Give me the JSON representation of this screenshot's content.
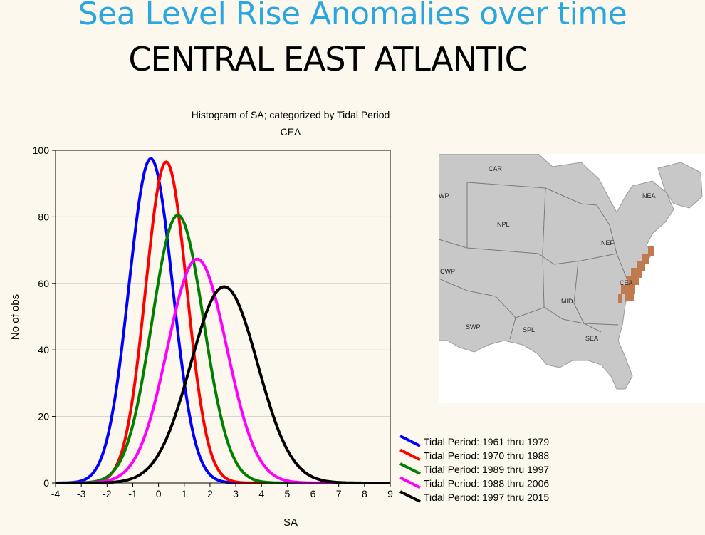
{
  "slide": {
    "title": "Sea Level Rise Anomalies over time",
    "subtitle": "CENTRAL EAST ATLANTIC"
  },
  "chart_data": {
    "type": "line",
    "title": "Histogram of SA; categorized by Tidal Period",
    "subtitle": "CEA",
    "xlabel": "SA",
    "ylabel": "No of obs",
    "xlim": [
      -4,
      9
    ],
    "ylim": [
      0,
      100
    ],
    "xticks": [
      -4,
      -3,
      -2,
      -1,
      0,
      1,
      2,
      3,
      4,
      5,
      6,
      7,
      8,
      9
    ],
    "yticks": [
      0,
      20,
      40,
      60,
      80,
      100
    ],
    "grid": "horizontal",
    "legend": "bottom-right",
    "series": [
      {
        "name": "Tidal Period: 1961 thru 1979",
        "color": "#0000ff",
        "peak_x": -0.3,
        "peak_y": 97.5,
        "sd": 0.85
      },
      {
        "name": "Tidal Period: 1970 thru 1988",
        "color": "#ff0000",
        "peak_x": 0.3,
        "peak_y": 96.5,
        "sd": 0.8
      },
      {
        "name": "Tidal Period: 1989 thru 1997",
        "color": "#008000",
        "peak_x": 0.75,
        "peak_y": 80.5,
        "sd": 1.0
      },
      {
        "name": "Tidal Period: 1988 thru 2006",
        "color": "#ff00ff",
        "peak_x": 1.5,
        "peak_y": 67.3,
        "sd": 1.15
      },
      {
        "name": "Tidal Period: 1997 thru 2015",
        "color": "#000000",
        "peak_x": 2.55,
        "peak_y": 59,
        "sd": 1.3
      }
    ]
  },
  "map": {
    "regions": [
      "CAR",
      "WP",
      "NPL",
      "NEA",
      "NEF",
      "CWP",
      "CEA",
      "MID",
      "SWP",
      "SPL",
      "SEA"
    ],
    "land_color": "#c8c8c8",
    "highlight_color": "#c07a50"
  }
}
